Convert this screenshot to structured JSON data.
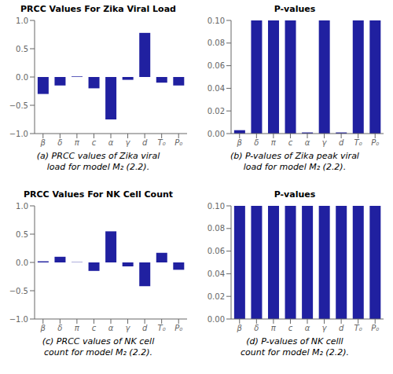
{
  "chart_data": [
    {
      "type": "bar",
      "title": "PRCC Values For Zika Viral Load",
      "categories": [
        "β",
        "δ",
        "π",
        "c",
        "α",
        "γ",
        "d",
        "T₀",
        "P₀"
      ],
      "values": [
        -0.3,
        -0.15,
        0.01,
        -0.2,
        -0.75,
        -0.05,
        0.78,
        -0.1,
        -0.15
      ],
      "color": "#2020A0",
      "ylim": [
        -1,
        1
      ],
      "yticks": [
        {
          "value": -1,
          "label": "−1.0"
        },
        {
          "value": -0.5,
          "label": "−0.5"
        },
        {
          "value": 0,
          "label": "0.0"
        },
        {
          "value": 0.5,
          "label": "0.5"
        },
        {
          "value": 1,
          "label": "1.0"
        }
      ],
      "grid": false,
      "annotations": [
        "(a) PRCC values of Zika viral\nload for model M₂ (2.2)."
      ]
    },
    {
      "type": "bar",
      "title": "P-values",
      "categories": [
        "β",
        "δ",
        "π",
        "c",
        "α",
        "γ",
        "d",
        "T₀",
        "P₀"
      ],
      "values": [
        0.003,
        0.1,
        0.1,
        0.1,
        0.001,
        0.1,
        0.001,
        0.1,
        0.1
      ],
      "color": "#2020A0",
      "ylim": [
        0,
        0.1
      ],
      "yticks": [
        {
          "value": 0,
          "label": "0.00"
        },
        0.02,
        0.04,
        0.06,
        0.08,
        {
          "value": 0.1,
          "label": "0.10"
        }
      ],
      "grid": false,
      "annotations": [
        "(b) P-values of Zika peak viral\nload for model M₂ (2.2)."
      ]
    },
    {
      "type": "bar",
      "title": "PRCC Values For NK Cell Count",
      "categories": [
        "β",
        "δ",
        "π",
        "c",
        "α",
        "γ",
        "d",
        "T₀",
        "P₀"
      ],
      "values": [
        0.02,
        0.1,
        0.005,
        -0.15,
        0.55,
        -0.07,
        -0.42,
        0.17,
        -0.13
      ],
      "color": "#2020A0",
      "ylim": [
        -1,
        1
      ],
      "yticks": [
        {
          "value": -1,
          "label": "−1.0"
        },
        {
          "value": -0.5,
          "label": "−0.5"
        },
        {
          "value": 0,
          "label": "0.0"
        },
        {
          "value": 0.5,
          "label": "0.5"
        },
        {
          "value": 1,
          "label": "1.0"
        }
      ],
      "grid": false,
      "annotations": [
        "(c) PRCC values of NK cell\ncount for model M₂ (2.2)."
      ]
    },
    {
      "type": "bar",
      "title": "P-values",
      "categories": [
        "β",
        "δ",
        "π",
        "c",
        "α",
        "γ",
        "d",
        "T₀",
        "P₀"
      ],
      "values": [
        0.1,
        0.1,
        0.1,
        0.1,
        0.1,
        0.1,
        0.1,
        0.1,
        0.1
      ],
      "color": "#2020A0",
      "ylim": [
        0,
        0.1
      ],
      "yticks": [
        {
          "value": 0,
          "label": "0.00"
        },
        0.02,
        0.04,
        0.06,
        0.08,
        {
          "value": 0.1,
          "label": "0.10"
        }
      ],
      "grid": false,
      "annotations": [
        "(d) P-values of NK celll\ncount for model M₂ (2.2)."
      ]
    }
  ]
}
